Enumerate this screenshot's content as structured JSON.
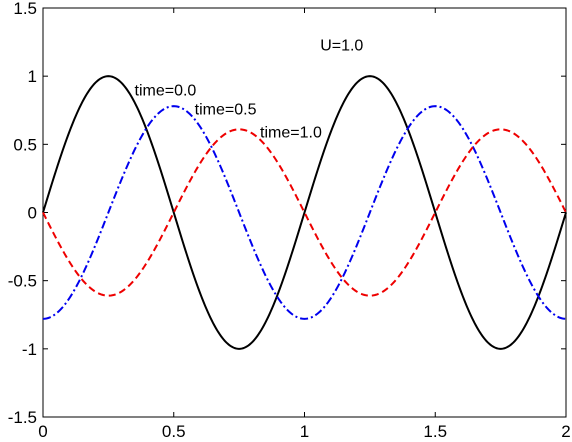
{
  "chart_data": {
    "type": "line",
    "xlim": [
      0,
      2
    ],
    "ylim": [
      -1.5,
      1.5
    ],
    "grid": false,
    "x_ticks": [
      "0",
      "0.5",
      "1",
      "1.5",
      "2"
    ],
    "y_ticks": [
      "1.5",
      "1",
      "0.5",
      "0",
      "-0.5",
      "-1",
      "-1.5"
    ],
    "x_tick_values": [
      0,
      0.5,
      1,
      1.5,
      2
    ],
    "y_tick_values": [
      1.5,
      1,
      0.5,
      0,
      -0.5,
      -1,
      -1.5
    ],
    "annotations": [
      {
        "text": "U=1.0",
        "x": 1.06,
        "y": 1.19
      },
      {
        "text": "time=0.0",
        "x": 0.35,
        "y": 0.86
      },
      {
        "text": "time=0.5",
        "x": 0.58,
        "y": 0.72
      },
      {
        "text": "time=1.0",
        "x": 0.83,
        "y": 0.55
      }
    ],
    "series": [
      {
        "label": "time=0.0",
        "color": "#000000",
        "style": "solid",
        "amplitude": 1.0,
        "shift": 0.0,
        "x": [
          0,
          0.25,
          0.5,
          0.75,
          1.0,
          1.25,
          1.5,
          1.75,
          2.0
        ],
        "values": [
          0,
          1.0,
          0,
          -1.0,
          0,
          1.0,
          0,
          -1.0,
          0
        ]
      },
      {
        "label": "time=0.5",
        "color": "#0000ee",
        "style": "dashdot",
        "amplitude": 0.78,
        "shift": 0.25,
        "x": [
          0,
          0.25,
          0.5,
          0.75,
          1.0,
          1.25,
          1.5,
          1.75,
          2.0
        ],
        "values": [
          -0.78,
          0,
          0.78,
          0,
          -0.78,
          0,
          0.78,
          0,
          -0.78
        ]
      },
      {
        "label": "time=1.0",
        "color": "#ee0000",
        "style": "dashed",
        "amplitude": 0.61,
        "shift": 0.5,
        "x": [
          0,
          0.25,
          0.5,
          0.75,
          1.0,
          1.25,
          1.5,
          1.75,
          2.0
        ],
        "values": [
          0,
          -0.61,
          0,
          0.61,
          0,
          -0.61,
          0,
          0.61,
          0
        ]
      }
    ]
  }
}
